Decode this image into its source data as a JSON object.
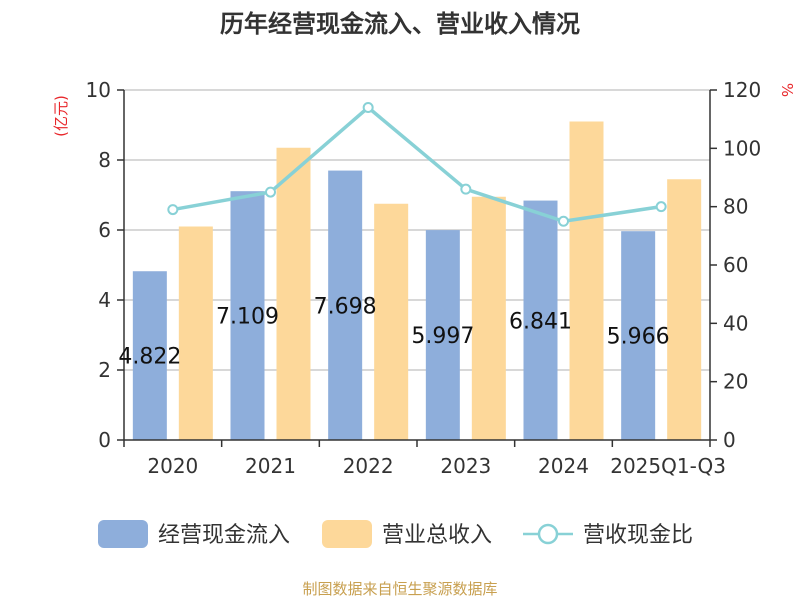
{
  "chart_data": {
    "type": "bar",
    "title": "历年经营现金流入、营业收入情况",
    "categories": [
      "2020",
      "2021",
      "2022",
      "2023",
      "2024",
      "2025Q1-Q3"
    ],
    "series": [
      {
        "name": "经营现金流入",
        "kind": "bar",
        "axis": "left",
        "color": "#8eaedb",
        "values": [
          4.822,
          7.109,
          7.698,
          5.997,
          6.841,
          5.966
        ],
        "labels": [
          "4.822",
          "7.109",
          "7.698",
          "5.997",
          "6.841",
          "5.966"
        ]
      },
      {
        "name": "营业总收入",
        "kind": "bar",
        "axis": "left",
        "color": "#fdd89a",
        "values": [
          6.1,
          8.35,
          6.75,
          6.95,
          9.1,
          7.45
        ]
      },
      {
        "name": "营收现金比",
        "kind": "line",
        "axis": "right",
        "color": "#88d1d6",
        "values": [
          79,
          85,
          114,
          86,
          75,
          80
        ]
      }
    ],
    "y_left": {
      "unit": "(亿元)",
      "ylim": [
        0,
        10
      ],
      "ticks": [
        0,
        2,
        4,
        6,
        8,
        10
      ]
    },
    "y_right": {
      "unit": "%",
      "ylim": [
        0,
        120
      ],
      "ticks": [
        0,
        20,
        40,
        60,
        80,
        100,
        120
      ]
    },
    "grid": true,
    "legend_position": "bottom",
    "source": "制图数据来自恒生聚源数据库"
  }
}
